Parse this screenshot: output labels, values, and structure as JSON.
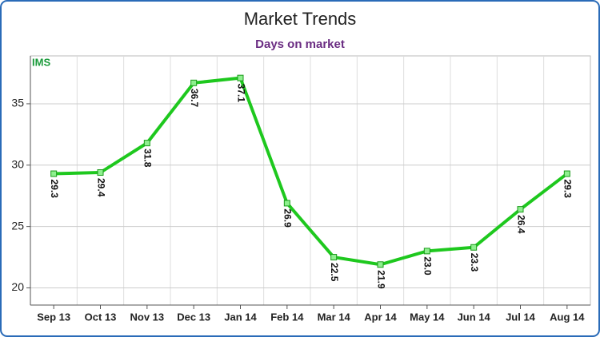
{
  "chart_data": {
    "type": "line",
    "title": "Market Trends",
    "subtitle": "Days on market",
    "logo": "IMS",
    "categories": [
      "Sep 13",
      "Oct 13",
      "Nov 13",
      "Dec 13",
      "Jan 14",
      "Feb 14",
      "Mar 14",
      "Apr 14",
      "May 14",
      "Jun 14",
      "Jul 14",
      "Aug 14"
    ],
    "series": [
      {
        "name": "Days on market",
        "color": "#1ec81e",
        "values": [
          29.3,
          29.4,
          31.8,
          36.7,
          37.1,
          26.9,
          22.5,
          21.9,
          23.0,
          23.3,
          26.4,
          29.3
        ],
        "value_labels": [
          "29.3",
          "29.4",
          "31.8",
          "36.7",
          "37.1",
          "26.9",
          "22.5",
          "21.9",
          "23.0",
          "23.3",
          "26.4",
          "29.3"
        ]
      }
    ],
    "ylim": [
      18.6,
      38.9
    ],
    "yticks": [
      20,
      25,
      30,
      35
    ],
    "grid": true
  }
}
